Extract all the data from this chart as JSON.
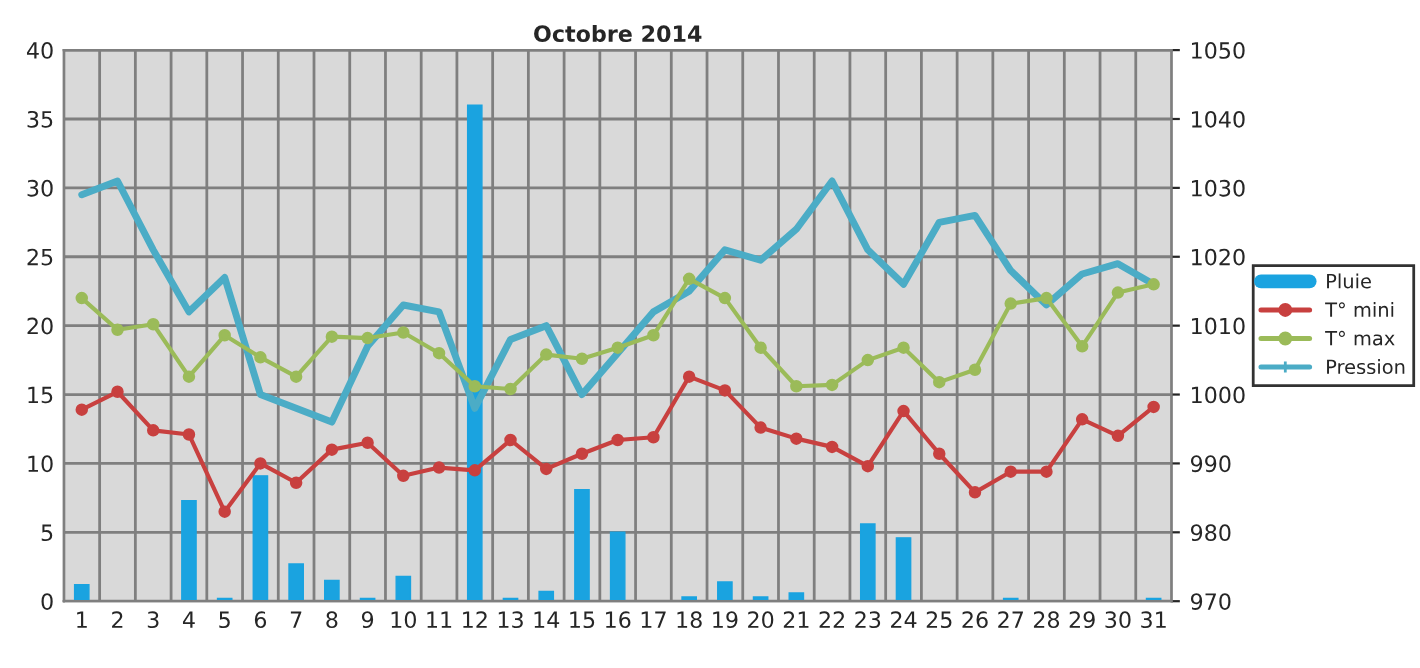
{
  "chart_data": {
    "type": "bar",
    "title": "Octobre 2014",
    "categories": [
      "1",
      "2",
      "3",
      "4",
      "5",
      "6",
      "7",
      "8",
      "9",
      "10",
      "11",
      "12",
      "13",
      "14",
      "15",
      "16",
      "17",
      "18",
      "19",
      "20",
      "21",
      "22",
      "23",
      "24",
      "25",
      "26",
      "27",
      "28",
      "29",
      "30",
      "31"
    ],
    "series": [
      {
        "name": "Pluie",
        "color": "#1aa3e0",
        "values": [
          1.2,
          0,
          0,
          7.3,
          0.2,
          9.1,
          2.7,
          1.5,
          0.2,
          1.8,
          0,
          36,
          0.2,
          0.7,
          8.1,
          5,
          0,
          0.3,
          1.4,
          0.3,
          0.6,
          0,
          5.6,
          4.6,
          0,
          0,
          0.2,
          0,
          0,
          0,
          0.2
        ]
      },
      {
        "name": "T° mini",
        "type": "line",
        "color": "#c8403f",
        "marker": "circle",
        "values": [
          13.9,
          15.2,
          12.4,
          12.1,
          6.5,
          10,
          8.6,
          11,
          11.5,
          9.1,
          9.7,
          9.5,
          11.7,
          9.6,
          10.7,
          11.7,
          11.9,
          16.3,
          15.3,
          12.6,
          11.8,
          11.2,
          9.8,
          13.8,
          10.7,
          7.9,
          9.4,
          9.4,
          13.2,
          12.0,
          14.1
        ]
      },
      {
        "name": "T° max",
        "type": "line",
        "color": "#9bbb59",
        "marker": "circle",
        "values": [
          22,
          19.7,
          20.1,
          16.3,
          19.3,
          17.7,
          16.3,
          19.2,
          19.1,
          19.5,
          18.0,
          15.6,
          15.4,
          17.9,
          17.6,
          18.4,
          19.3,
          23.4,
          22,
          18.4,
          15.6,
          15.7,
          17.5,
          18.4,
          15.9,
          16.8,
          21.6,
          22.0,
          18.5,
          22.4,
          23.0
        ]
      },
      {
        "name": "Pression",
        "type": "line",
        "axis": "y2",
        "color": "#4bacc6",
        "marker": "none",
        "values": [
          1029,
          1031,
          1021,
          1012,
          1017,
          1000,
          998,
          996,
          1007,
          1013,
          1012,
          998,
          1008,
          1010,
          1000,
          1006,
          1012,
          1015,
          1021,
          1019.5,
          1024,
          1031,
          1021,
          1016,
          1025,
          1026,
          1018,
          1013,
          1017.5,
          1019,
          1016
        ]
      }
    ],
    "ylim": [
      0,
      40
    ],
    "yticks": [
      0,
      5,
      10,
      15,
      20,
      25,
      30,
      35,
      40
    ],
    "y2lim": [
      970,
      1050
    ],
    "y2ticks": [
      970,
      980,
      990,
      1000,
      1010,
      1020,
      1030,
      1040,
      1050
    ],
    "grid": true,
    "legend": "right"
  }
}
